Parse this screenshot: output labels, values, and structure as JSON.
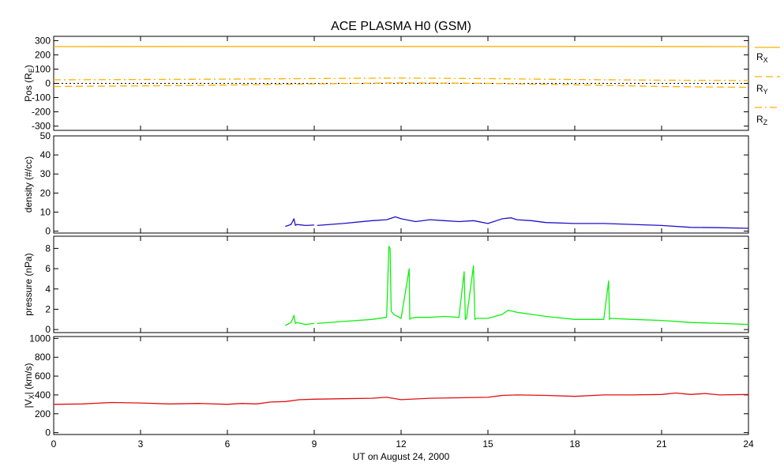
{
  "chart_data": {
    "type": "line",
    "title": "ACE PLASMA H0 (GSM)",
    "xlabel": "UT on August 24, 2000",
    "xlim": [
      0,
      24
    ],
    "x_ticks": [
      0,
      3,
      6,
      9,
      12,
      15,
      18,
      21,
      24
    ],
    "x_tick_labels": [
      "0",
      "3",
      "6",
      "9",
      "12",
      "15",
      "18",
      "21",
      "24"
    ],
    "panels": [
      {
        "id": "pos",
        "ylabel_main": "Pos (R",
        "ylabel_sub": "E",
        "ylabel_end": ")",
        "ylim": [
          -330,
          330
        ],
        "y_ticks": [
          -300,
          -200,
          -100,
          0,
          100,
          200,
          300
        ],
        "y_tick_labels": [
          "-300",
          "-200",
          "-100",
          "0",
          "100",
          "200",
          "300"
        ],
        "zero_line": true,
        "series": [
          {
            "name_main": "R",
            "name_sub": "X",
            "color": "#FFB000",
            "dash": "solid",
            "x": [
              0,
              6,
              12,
              18,
              24
            ],
            "y": [
              258,
              259,
              259,
              259,
              258
            ]
          },
          {
            "name_main": "R",
            "name_sub": "Y",
            "color": "#FFB000",
            "dash": "dashed",
            "x": [
              0,
              3,
              6,
              9,
              12,
              15,
              18,
              21,
              24
            ],
            "y": [
              -22,
              -18,
              -12,
              -4,
              4,
              0,
              -10,
              -22,
              -28
            ]
          },
          {
            "name_main": "R",
            "name_sub": "Z",
            "color": "#FFB000",
            "dash": "dashdot",
            "x": [
              0,
              3,
              6,
              9,
              12,
              15,
              18,
              21,
              24
            ],
            "y": [
              25,
              27,
              30,
              34,
              37,
              33,
              27,
              22,
              20
            ]
          }
        ]
      },
      {
        "id": "density",
        "ylabel_main": "density (#/cc)",
        "ylim": [
          -1,
          50
        ],
        "y_ticks": [
          0,
          10,
          20,
          30,
          40,
          50
        ],
        "y_tick_labels": [
          "0",
          "10",
          "20",
          "30",
          "40",
          "50"
        ],
        "series": [
          {
            "color": "#2010C8",
            "segments": [
              {
                "x": [
                  8.0,
                  8.2,
                  8.3,
                  8.35,
                  8.4,
                  8.7,
                  9.0
                ],
                "y": [
                  2.5,
                  3.5,
                  6.5,
                  3.0,
                  3.5,
                  3.0,
                  3.2
                ]
              },
              {
                "x": [
                  9.1,
                  10,
                  11,
                  11.5,
                  11.8,
                  12,
                  12.5,
                  13,
                  13.5,
                  14,
                  14.5,
                  15,
                  15.5,
                  15.8,
                  16,
                  16.5,
                  17,
                  18,
                  19,
                  20,
                  21,
                  22,
                  23,
                  24
                ],
                "y": [
                  3.0,
                  4.0,
                  5.5,
                  6.0,
                  7.5,
                  6.5,
                  5.0,
                  6.0,
                  5.5,
                  5.0,
                  5.5,
                  4.0,
                  6.5,
                  7.0,
                  6.0,
                  5.5,
                  4.5,
                  4.0,
                  4.0,
                  3.5,
                  3.0,
                  2.0,
                  1.8,
                  1.5
                ]
              }
            ]
          }
        ]
      },
      {
        "id": "pressure",
        "ylabel_main": "pressure (nPa)",
        "ylim": [
          -0.3,
          9.2
        ],
        "y_ticks": [
          0,
          2,
          4,
          6,
          8
        ],
        "y_tick_labels": [
          "0",
          "2",
          "4",
          "6",
          "8"
        ],
        "series": [
          {
            "color": "#10F010",
            "segments": [
              {
                "x": [
                  8.0,
                  8.2,
                  8.3,
                  8.35,
                  8.4,
                  8.7,
                  9.0
                ],
                "y": [
                  0.4,
                  0.7,
                  1.4,
                  0.6,
                  0.7,
                  0.5,
                  0.6
                ]
              },
              {
                "x": [
                  9.1,
                  10,
                  11,
                  11.5,
                  11.58,
                  11.62,
                  11.66,
                  11.75,
                  12,
                  12.28,
                  12.3,
                  12.32,
                  12.5,
                  13,
                  13.5,
                  14,
                  14.18,
                  14.22,
                  14.26,
                  14.5,
                  14.55,
                  14.6,
                  15,
                  15.5,
                  15.7,
                  16,
                  16.5,
                  17,
                  18,
                  19,
                  19.17,
                  19.2,
                  19.23,
                  20,
                  21,
                  22,
                  23,
                  24
                ],
                "y": [
                  0.6,
                  0.8,
                  1.0,
                  1.2,
                  8.2,
                  8.0,
                  1.8,
                  1.5,
                  1.1,
                  6.0,
                  1.0,
                  1.1,
                  1.2,
                  1.2,
                  1.3,
                  1.2,
                  5.7,
                  1.0,
                  1.1,
                  6.3,
                  1.0,
                  1.1,
                  1.1,
                  1.5,
                  1.9,
                  1.7,
                  1.5,
                  1.3,
                  1.0,
                  1.0,
                  4.8,
                  1.0,
                  1.1,
                  1.0,
                  0.9,
                  0.7,
                  0.6,
                  0.5
                ]
              }
            ]
          }
        ]
      },
      {
        "id": "vx",
        "ylabel_main": "|V",
        "ylabel_sub": "X",
        "ylabel_end": "| (km/s)",
        "ylim": [
          -20,
          1020
        ],
        "y_ticks": [
          0,
          200,
          400,
          600,
          800,
          1000
        ],
        "y_tick_labels": [
          "0",
          "200",
          "400",
          "600",
          "800",
          "1000"
        ],
        "series": [
          {
            "color": "#E01010",
            "segments": [
              {
                "x": [
                  0,
                  1,
                  2,
                  3,
                  4,
                  5,
                  6,
                  6.5,
                  7,
                  7.5,
                  8,
                  8.5,
                  9,
                  10,
                  11,
                  11.5,
                  12,
                  13,
                  14,
                  15,
                  15.5,
                  16,
                  17,
                  18,
                  19,
                  20,
                  21,
                  21.5,
                  22,
                  22.5,
                  23,
                  24
                ],
                "y": [
                  300,
                  305,
                  320,
                  315,
                  305,
                  310,
                  300,
                  310,
                  305,
                  325,
                  330,
                  350,
                  355,
                  360,
                  365,
                  375,
                  350,
                  365,
                  370,
                  375,
                  395,
                  400,
                  395,
                  385,
                  400,
                  400,
                  405,
                  420,
                  405,
                  415,
                  400,
                  405
                ]
              }
            ]
          }
        ]
      }
    ]
  }
}
